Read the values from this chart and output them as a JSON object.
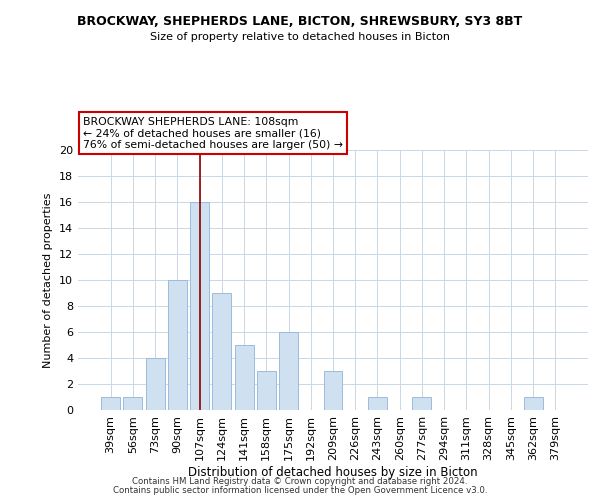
{
  "title": "BROCKWAY, SHEPHERDS LANE, BICTON, SHREWSBURY, SY3 8BT",
  "subtitle": "Size of property relative to detached houses in Bicton",
  "xlabel": "Distribution of detached houses by size in Bicton",
  "ylabel": "Number of detached properties",
  "bar_color": "#cfe0f0",
  "bar_edge_color": "#9cbcdc",
  "categories": [
    "39sqm",
    "56sqm",
    "73sqm",
    "90sqm",
    "107sqm",
    "124sqm",
    "141sqm",
    "158sqm",
    "175sqm",
    "192sqm",
    "209sqm",
    "226sqm",
    "243sqm",
    "260sqm",
    "277sqm",
    "294sqm",
    "311sqm",
    "328sqm",
    "345sqm",
    "362sqm",
    "379sqm"
  ],
  "values": [
    1,
    1,
    4,
    10,
    16,
    9,
    5,
    3,
    6,
    0,
    3,
    0,
    1,
    0,
    1,
    0,
    0,
    0,
    0,
    1,
    0
  ],
  "ylim": [
    0,
    20
  ],
  "yticks": [
    0,
    2,
    4,
    6,
    8,
    10,
    12,
    14,
    16,
    18,
    20
  ],
  "annotation_title": "BROCKWAY SHEPHERDS LANE: 108sqm",
  "annotation_line1": "← 24% of detached houses are smaller (16)",
  "annotation_line2": "76% of semi-detached houses are larger (50) →",
  "vline_x": 4,
  "vline_color": "#8b0000",
  "footer1": "Contains HM Land Registry data © Crown copyright and database right 2024.",
  "footer2": "Contains public sector information licensed under the Open Government Licence v3.0.",
  "bg_color": "#ffffff",
  "grid_color": "#c8d8e8"
}
